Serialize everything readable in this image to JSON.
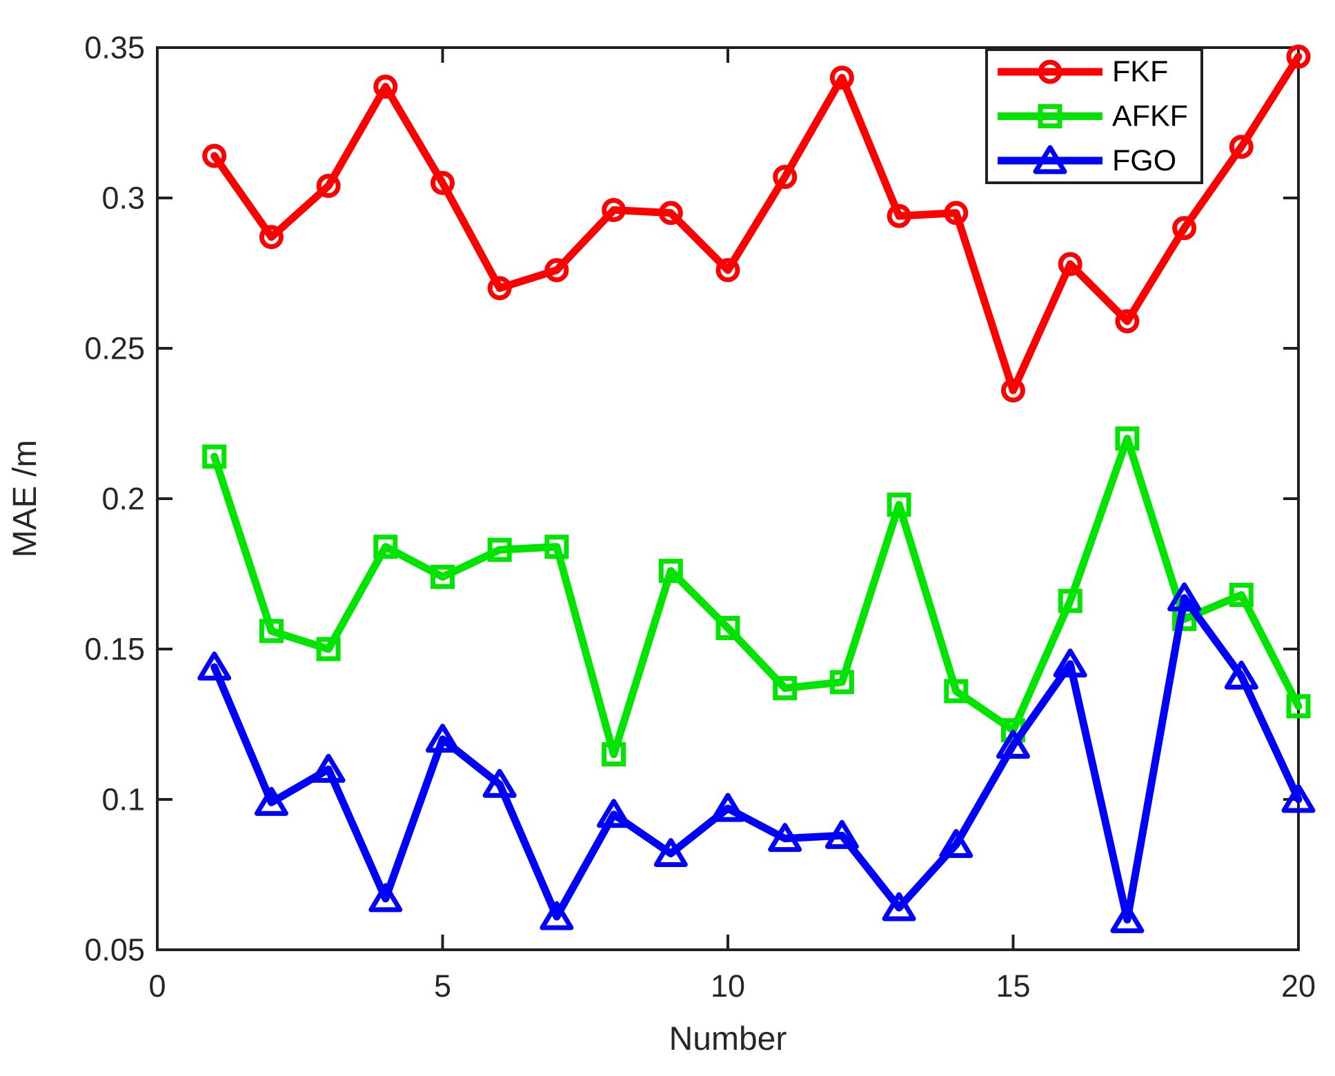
{
  "figure": {
    "background": "#ffffff",
    "axis_color": "#202020",
    "tick_label_color": "#262626"
  },
  "chart_data": {
    "type": "line",
    "title": "",
    "xlabel": "Number",
    "ylabel": "MAE /m",
    "xlim": [
      0,
      20
    ],
    "ylim": [
      0.05,
      0.35
    ],
    "xticks": [
      0,
      5,
      10,
      15,
      20
    ],
    "xtick_labels": [
      "0",
      "5",
      "10",
      "15",
      "20"
    ],
    "yticks": [
      0.05,
      0.1,
      0.15,
      0.2,
      0.25,
      0.3,
      0.35
    ],
    "ytick_labels": [
      "0.05",
      "0.1",
      "0.15",
      "0.2",
      "0.25",
      "0.3",
      "0.35"
    ],
    "grid": false,
    "legend_position": "top-right",
    "x": [
      1,
      2,
      3,
      4,
      5,
      6,
      7,
      8,
      9,
      10,
      11,
      12,
      13,
      14,
      15,
      16,
      17,
      18,
      19,
      20
    ],
    "series": [
      {
        "name": "FKF",
        "color": "#ff0000",
        "marker": "circle",
        "values": [
          0.314,
          0.287,
          0.304,
          0.337,
          0.305,
          0.27,
          0.276,
          0.296,
          0.295,
          0.276,
          0.307,
          0.34,
          0.294,
          0.295,
          0.236,
          0.278,
          0.259,
          0.29,
          0.317,
          0.347
        ]
      },
      {
        "name": "AFKF",
        "color": "#00e400",
        "marker": "square",
        "values": [
          0.214,
          0.156,
          0.15,
          0.184,
          0.174,
          0.183,
          0.184,
          0.115,
          0.176,
          0.157,
          0.137,
          0.139,
          0.198,
          0.136,
          0.123,
          0.166,
          0.22,
          0.16,
          0.168,
          0.131
        ]
      },
      {
        "name": "FGO",
        "color": "#0000ff",
        "marker": "triangle",
        "values": [
          0.144,
          0.099,
          0.11,
          0.067,
          0.12,
          0.105,
          0.061,
          0.095,
          0.082,
          0.097,
          0.087,
          0.088,
          0.064,
          0.085,
          0.118,
          0.145,
          0.06,
          0.167,
          0.141,
          0.1
        ]
      }
    ]
  }
}
